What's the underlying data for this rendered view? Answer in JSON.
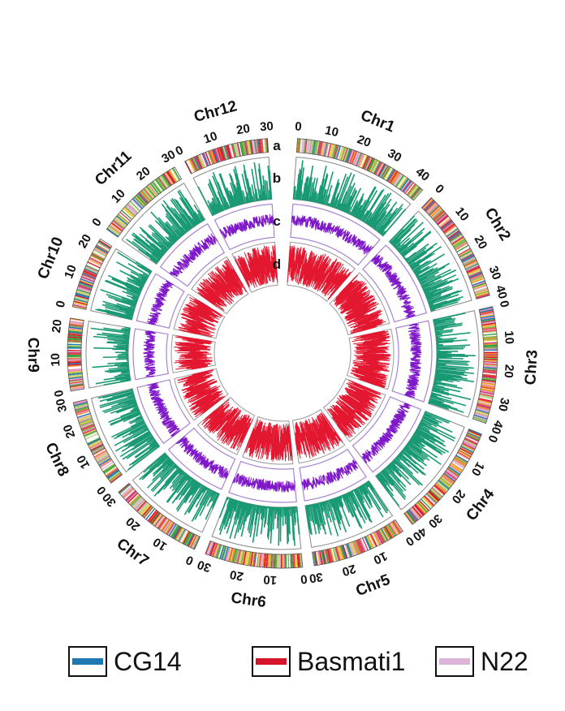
{
  "chart_data": {
    "type": "circos",
    "chromosomes": [
      {
        "name": "Chr1",
        "length": 43,
        "ticks": [
          "0",
          "10",
          "20",
          "30",
          "40"
        ]
      },
      {
        "name": "Chr2",
        "length": 36,
        "ticks": [
          "0",
          "10",
          "20",
          "30",
          "40"
        ]
      },
      {
        "name": "Chr3",
        "length": 37,
        "ticks": [
          "0",
          "10",
          "20",
          "30",
          "40"
        ]
      },
      {
        "name": "Chr4",
        "length": 36,
        "ticks": [
          "0",
          "10",
          "20",
          "30",
          "40"
        ]
      },
      {
        "name": "Chr5",
        "length": 30,
        "ticks": [
          "0",
          "10",
          "20",
          "30"
        ]
      },
      {
        "name": "Chr6",
        "length": 31,
        "ticks": [
          "0",
          "10",
          "20",
          "30"
        ]
      },
      {
        "name": "Chr7",
        "length": 30,
        "ticks": [
          "0",
          "10",
          "20",
          "30"
        ]
      },
      {
        "name": "Chr8",
        "length": 28,
        "ticks": [
          "0",
          "10",
          "20",
          "30"
        ]
      },
      {
        "name": "Chr9",
        "length": 23,
        "ticks": [
          "0",
          "10",
          "20"
        ]
      },
      {
        "name": "Chr10",
        "length": 23,
        "ticks": [
          "0",
          "10",
          "20"
        ]
      },
      {
        "name": "Chr11",
        "length": 29,
        "ticks": [
          "0",
          "10",
          "20",
          "30"
        ]
      },
      {
        "name": "Chr12",
        "length": 27,
        "ticks": [
          "0",
          "10",
          "20",
          "30"
        ]
      }
    ],
    "tracks": [
      {
        "id": "a",
        "kind": "haplotype-blocks",
        "colors": [
          "#1f77b4",
          "#d7152a",
          "#ddb5d8"
        ]
      },
      {
        "id": "b",
        "kind": "bar",
        "color": "#1a9a74"
      },
      {
        "id": "c",
        "kind": "line",
        "color": "#7e18c8"
      },
      {
        "id": "d",
        "kind": "line",
        "color": "#e3172f"
      }
    ],
    "legend": [
      {
        "label": "CG14",
        "color": "#1f77b4"
      },
      {
        "label": "Basmati1",
        "color": "#d7152a"
      },
      {
        "label": "N22",
        "color": "#ddb5d8"
      }
    ]
  }
}
